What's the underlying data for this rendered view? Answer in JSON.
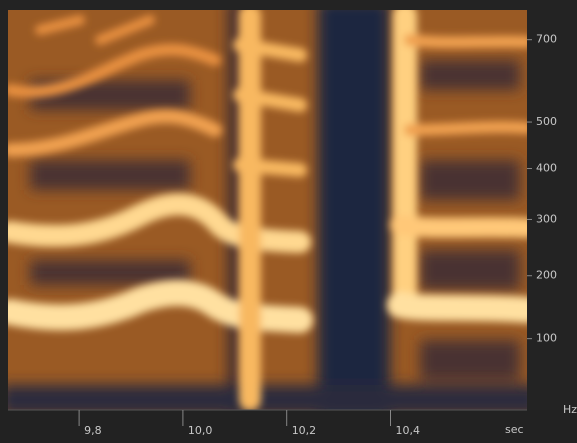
{
  "chart_data": {
    "type": "spectrogram",
    "xlim": [
      9.663,
      10.663
    ],
    "xticks": [
      {
        "value": 9.8,
        "label": "9,8"
      },
      {
        "value": 10.0,
        "label": "10,0"
      },
      {
        "value": 10.2,
        "label": "10,2"
      },
      {
        "value": 10.4,
        "label": "10,4"
      }
    ],
    "x_unit_label": "sec",
    "ylim": [
      0,
      780
    ],
    "yscale": "mel",
    "yticks": [
      100,
      200,
      300,
      400,
      500,
      700
    ],
    "y_unit_label": "Hz"
  }
}
